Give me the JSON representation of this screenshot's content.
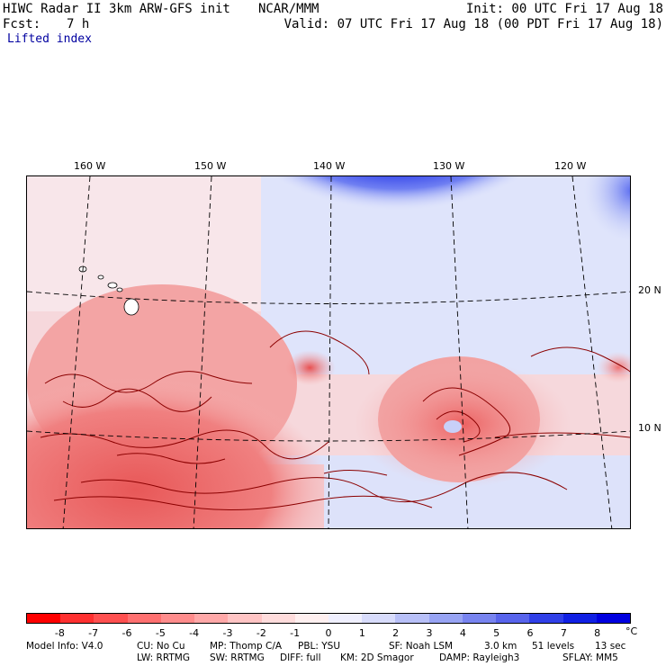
{
  "header": {
    "model_title": "HIWC Radar II 3km ARW-GFS init",
    "org": "NCAR/MMM",
    "init": "Init: 00 UTC Fri 17 Aug 18",
    "fcst_label": "Fcst:",
    "fcst_value": "7 h",
    "valid": "Valid: 07 UTC Fri 17 Aug 18 (00 PDT Fri 17 Aug 18)",
    "field": "Lifted index"
  },
  "map": {
    "lon_labels": [
      "160 W",
      "150 W",
      "140 W",
      "130 W",
      "120 W"
    ],
    "lat_labels": [
      "20 N",
      "10 N"
    ],
    "colors": {
      "deep_blue": "#0010e0",
      "mid_blue": "#5a6cf0",
      "light_blue": "#c8d0f8",
      "light_red": "#f8c8c8",
      "mid_red": "#f07878",
      "deep_red": "#e84848",
      "contour": "#8b0000"
    }
  },
  "colorbar": {
    "unit": "°C",
    "ticks": [
      "-8",
      "-7",
      "-6",
      "-5",
      "-4",
      "-3",
      "-2",
      "-1",
      "0",
      "1",
      "2",
      "3",
      "4",
      "5",
      "6",
      "7",
      "8"
    ],
    "colors": [
      "#ff0000",
      "#ff3030",
      "#ff5050",
      "#ff7070",
      "#ff8c8c",
      "#ffa8a8",
      "#ffc4c4",
      "#ffdcdc",
      "#fff0f0",
      "#f0f0ff",
      "#d8dcfc",
      "#b8c0f8",
      "#98a4f4",
      "#7884f0",
      "#5864ec",
      "#3040e8",
      "#1020e4",
      "#0000e0"
    ]
  },
  "footer": {
    "line1": [
      "Model Info: V4.0",
      "CU: No Cu",
      "MP: Thomp C/A",
      "PBL: YSU",
      "SF: Noah LSM",
      "3.0 km",
      "51 levels",
      "13 sec"
    ],
    "line2": [
      "LW: RRTMG",
      "SW: RRTMG",
      "DIFF: full",
      "KM: 2D Smagor",
      "DAMP: Rayleigh3",
      "SFLAY: MM5"
    ]
  }
}
